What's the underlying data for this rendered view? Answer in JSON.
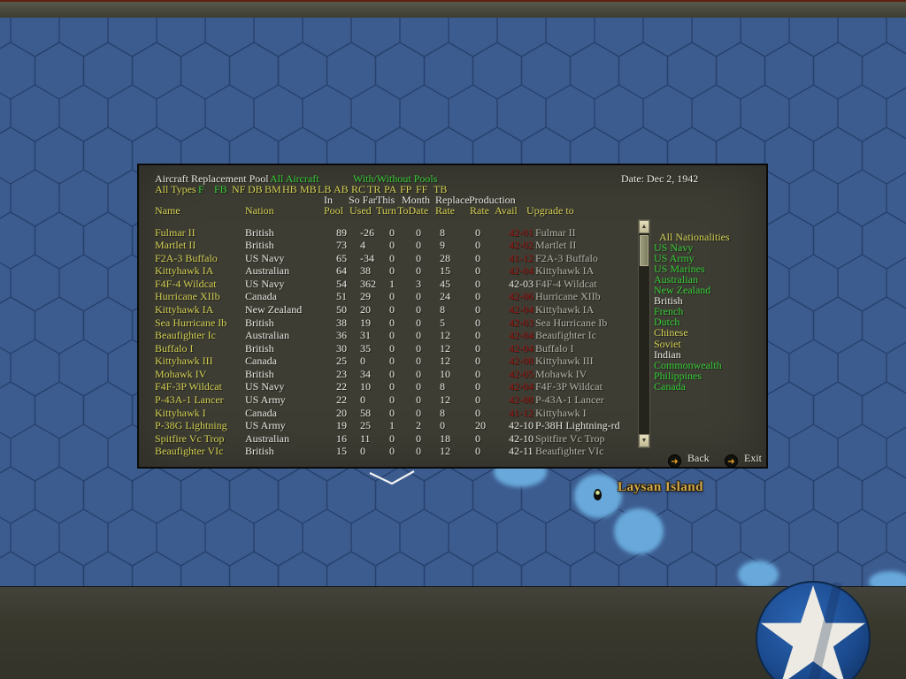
{
  "window": {
    "title": "Aircraft Replacement Pool",
    "scope_label": "All Aircraft",
    "pools_label": "With/Without Pools",
    "date": "Date: Dec 2, 1942"
  },
  "filters": {
    "all_label": "All Types",
    "types": [
      {
        "label": "F",
        "active": true
      },
      {
        "label": "FB",
        "active": true
      },
      {
        "label": "NF",
        "active": false
      },
      {
        "label": "DB",
        "active": false
      },
      {
        "label": "BM",
        "active": false
      },
      {
        "label": "HB",
        "active": false
      },
      {
        "label": "MB",
        "active": false
      },
      {
        "label": "LB",
        "active": false
      },
      {
        "label": "AB",
        "active": false
      },
      {
        "label": "RC",
        "active": false
      },
      {
        "label": "TR",
        "active": false
      },
      {
        "label": "PA",
        "active": false
      },
      {
        "label": "FP",
        "active": false
      },
      {
        "label": "FF",
        "active": false
      },
      {
        "label": "TB",
        "active": false
      }
    ]
  },
  "table": {
    "headers_line1": [
      "In",
      "So Far",
      "This",
      "Month",
      "Replace",
      "Production"
    ],
    "headers_line2": [
      "Name",
      "Nation",
      "Pool",
      "Used",
      "Turn",
      "ToDate",
      "Rate",
      "Rate",
      "Avail",
      "Upgrade to"
    ],
    "rows": [
      {
        "name": "Fulmar II",
        "nation": "British",
        "pool": 89,
        "used": -26,
        "turn": 0,
        "todate": 0,
        "replace": 8,
        "prod": 0,
        "avail": "42-01",
        "avail_color": "red",
        "upgrade": "Fulmar II",
        "upgrade_color": "gray"
      },
      {
        "name": "Martlet II",
        "nation": "British",
        "pool": 73,
        "used": 4,
        "turn": 0,
        "todate": 0,
        "replace": 9,
        "prod": 0,
        "avail": "42-02",
        "avail_color": "red",
        "upgrade": "Martlet II",
        "upgrade_color": "gray"
      },
      {
        "name": "F2A-3 Buffalo",
        "nation": "US Navy",
        "pool": 65,
        "used": -34,
        "turn": 0,
        "todate": 0,
        "replace": 28,
        "prod": 0,
        "avail": "41-12",
        "avail_color": "red",
        "upgrade": "F2A-3 Buffalo",
        "upgrade_color": "gray"
      },
      {
        "name": "Kittyhawk IA",
        "nation": "Australian",
        "pool": 64,
        "used": 38,
        "turn": 0,
        "todate": 0,
        "replace": 15,
        "prod": 0,
        "avail": "42-04",
        "avail_color": "red",
        "upgrade": "Kittyhawk IA",
        "upgrade_color": "gray"
      },
      {
        "name": "F4F-4 Wildcat",
        "nation": "US Navy",
        "pool": 54,
        "used": 362,
        "turn": 1,
        "todate": 3,
        "replace": 45,
        "prod": 0,
        "avail": "42-03",
        "avail_color": "white",
        "upgrade": "F4F-4 Wildcat",
        "upgrade_color": "gray"
      },
      {
        "name": "Hurricane XIIb",
        "nation": "Canada",
        "pool": 51,
        "used": 29,
        "turn": 0,
        "todate": 0,
        "replace": 24,
        "prod": 0,
        "avail": "42-06",
        "avail_color": "red",
        "upgrade": "Hurricane XIIb",
        "upgrade_color": "gray"
      },
      {
        "name": "Kittyhawk IA",
        "nation": "New Zealand",
        "pool": 50,
        "used": 20,
        "turn": 0,
        "todate": 0,
        "replace": 8,
        "prod": 0,
        "avail": "42-04",
        "avail_color": "red",
        "upgrade": "Kittyhawk IA",
        "upgrade_color": "gray"
      },
      {
        "name": "Sea Hurricane Ib",
        "nation": "British",
        "pool": 38,
        "used": 19,
        "turn": 0,
        "todate": 0,
        "replace": 5,
        "prod": 0,
        "avail": "42-03",
        "avail_color": "red",
        "upgrade": "Sea Hurricane Ib",
        "upgrade_color": "gray"
      },
      {
        "name": "Beaufighter Ic",
        "nation": "Australian",
        "pool": 36,
        "used": 31,
        "turn": 0,
        "todate": 0,
        "replace": 12,
        "prod": 0,
        "avail": "42-04",
        "avail_color": "red",
        "upgrade": "Beaufighter Ic",
        "upgrade_color": "gray"
      },
      {
        "name": "Buffalo I",
        "nation": "British",
        "pool": 30,
        "used": 35,
        "turn": 0,
        "todate": 0,
        "replace": 12,
        "prod": 0,
        "avail": "42-04",
        "avail_color": "red",
        "upgrade": "Buffalo I",
        "upgrade_color": "gray"
      },
      {
        "name": "Kittyhawk III",
        "nation": "Canada",
        "pool": 25,
        "used": 0,
        "turn": 0,
        "todate": 0,
        "replace": 12,
        "prod": 0,
        "avail": "42-08",
        "avail_color": "red",
        "upgrade": "Kittyhawk III",
        "upgrade_color": "gray"
      },
      {
        "name": "Mohawk IV",
        "nation": "British",
        "pool": 23,
        "used": 34,
        "turn": 0,
        "todate": 0,
        "replace": 10,
        "prod": 0,
        "avail": "42-05",
        "avail_color": "red",
        "upgrade": "Mohawk IV",
        "upgrade_color": "gray"
      },
      {
        "name": "F4F-3P Wildcat",
        "nation": "US Navy",
        "pool": 22,
        "used": 10,
        "turn": 0,
        "todate": 0,
        "replace": 8,
        "prod": 0,
        "avail": "42-04",
        "avail_color": "red",
        "upgrade": "F4F-3P Wildcat",
        "upgrade_color": "gray"
      },
      {
        "name": "P-43A-1 Lancer",
        "nation": "US Army",
        "pool": 22,
        "used": 0,
        "turn": 0,
        "todate": 0,
        "replace": 12,
        "prod": 0,
        "avail": "42-08",
        "avail_color": "red",
        "upgrade": "P-43A-1 Lancer",
        "upgrade_color": "gray"
      },
      {
        "name": "Kittyhawk I",
        "nation": "Canada",
        "pool": 20,
        "used": 58,
        "turn": 0,
        "todate": 0,
        "replace": 8,
        "prod": 0,
        "avail": "41-12",
        "avail_color": "red",
        "upgrade": "Kittyhawk I",
        "upgrade_color": "gray"
      },
      {
        "name": "P-38G Lightning",
        "nation": "US Army",
        "pool": 19,
        "used": 25,
        "turn": 1,
        "todate": 2,
        "replace": 0,
        "prod": 20,
        "avail": "42-10",
        "avail_color": "white",
        "upgrade": "P-38H Lightning-rd",
        "upgrade_color": "white"
      },
      {
        "name": "Spitfire Vc Trop",
        "nation": "Australian",
        "pool": 16,
        "used": 11,
        "turn": 0,
        "todate": 0,
        "replace": 18,
        "prod": 0,
        "avail": "42-10",
        "avail_color": "white",
        "upgrade": "Spitfire Vc Trop",
        "upgrade_color": "gray"
      },
      {
        "name": "Beaufighter VIc",
        "nation": "British",
        "pool": 15,
        "used": 0,
        "turn": 0,
        "todate": 0,
        "replace": 12,
        "prod": 0,
        "avail": "42-11",
        "avail_color": "white",
        "upgrade": "Beaufighter VIc",
        "upgrade_color": "gray"
      }
    ]
  },
  "nationalities": [
    {
      "label": "All Nationalities",
      "color": "yellow"
    },
    {
      "label": "US Navy",
      "color": "green"
    },
    {
      "label": "US Army",
      "color": "green"
    },
    {
      "label": "US Marines",
      "color": "green"
    },
    {
      "label": "Australian",
      "color": "green"
    },
    {
      "label": "New Zealand",
      "color": "green"
    },
    {
      "label": "British",
      "color": "white"
    },
    {
      "label": "French",
      "color": "green"
    },
    {
      "label": "Dutch",
      "color": "green"
    },
    {
      "label": "Chinese",
      "color": "yellow"
    },
    {
      "label": "Soviet",
      "color": "yellow"
    },
    {
      "label": "Indian",
      "color": "white"
    },
    {
      "label": "Commonwealth",
      "color": "green"
    },
    {
      "label": "Philippines",
      "color": "green"
    },
    {
      "label": "Canada",
      "color": "green"
    }
  ],
  "scrollbar": {
    "up_icon": "▲",
    "down_icon": "▼"
  },
  "buttons": {
    "back": "Back",
    "exit": "Exit",
    "arrow_icon": "➜"
  },
  "map": {
    "island_label": "Laysan Island"
  },
  "colors": {
    "text_yellow": "#d3cf52",
    "text_green": "#37cc37",
    "text_white": "#e8e8e2",
    "text_red": "#9c1410",
    "text_gray": "#b2b2a8",
    "map_blue": "#3c5c90",
    "hex_line": "#27416d",
    "shallow_blue": "#68a8da",
    "dialog_olive": "#3d3d34",
    "panel_olive": "#3a3a2f",
    "titlebar_red": "#5e2013"
  }
}
